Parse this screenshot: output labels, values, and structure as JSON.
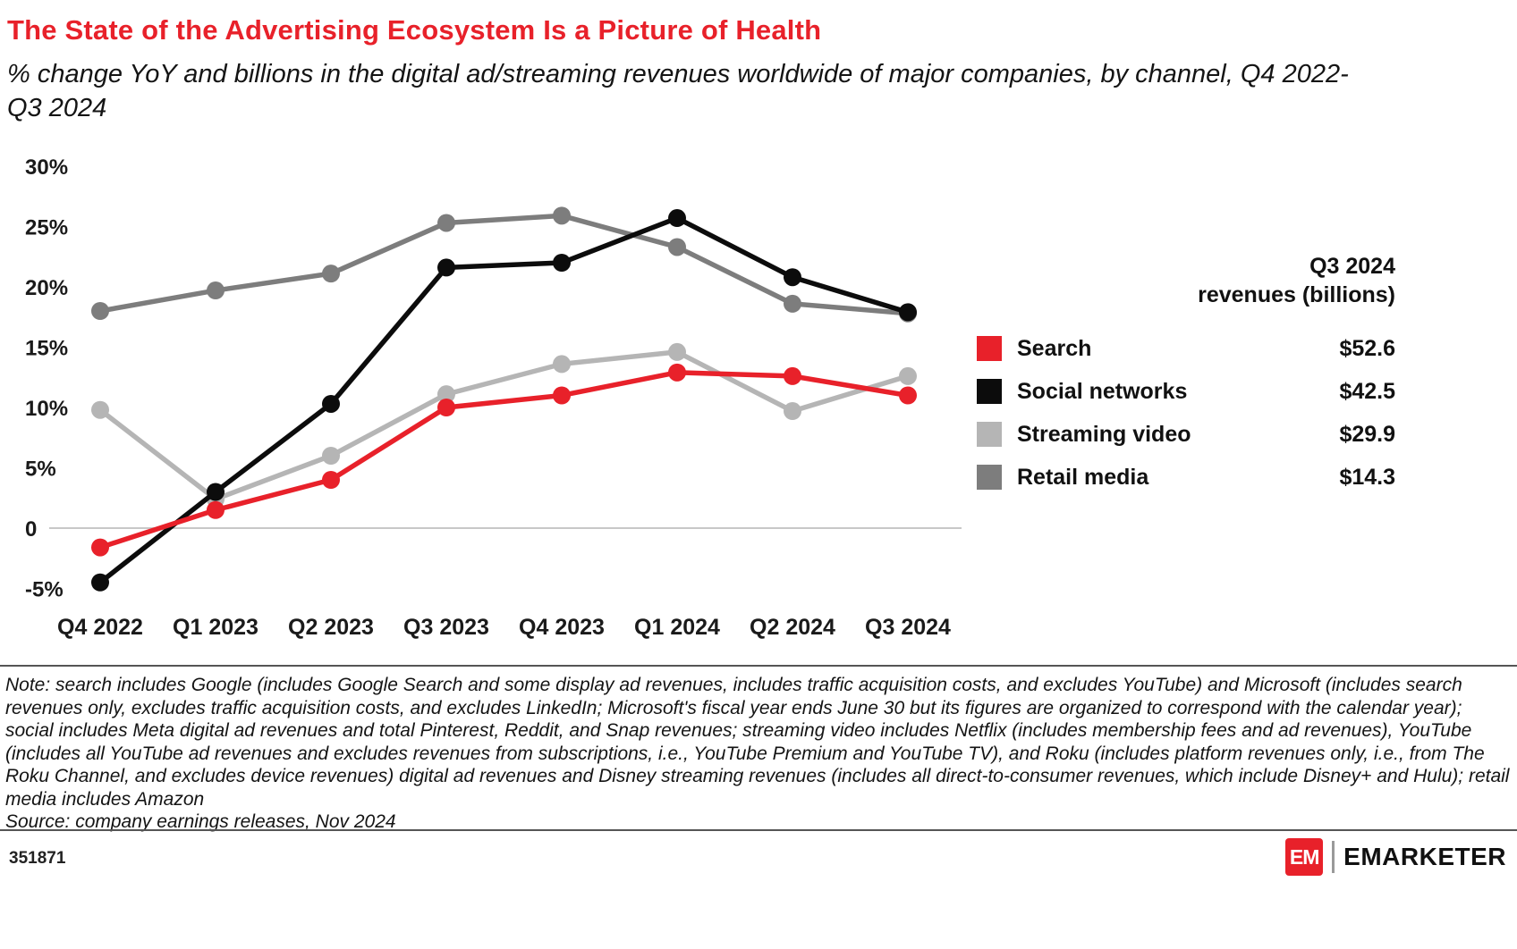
{
  "header": {
    "title": "The State of the Advertising Ecosystem Is a Picture of Health",
    "subtitle": "% change YoY and billions in the digital ad/streaming revenues worldwide of major companies, by channel, Q4 2022-Q3 2024"
  },
  "colors": {
    "accent_red": "#e8212a",
    "social_black": "#0c0c0c",
    "streaming_gray": "#b5b5b5",
    "retail_gray": "#7d7d7d",
    "zero_line": "#c8c8c8"
  },
  "chart_data": {
    "type": "line",
    "title": "The State of the Advertising Ecosystem Is a Picture of Health",
    "subtitle": "% change YoY and billions in the digital ad/streaming revenues worldwide of major companies, by channel, Q4 2022-Q3 2024",
    "categories": [
      "Q4 2022",
      "Q1 2023",
      "Q2 2023",
      "Q3 2023",
      "Q4 2023",
      "Q1 2024",
      "Q2 2024",
      "Q3 2024"
    ],
    "series": [
      {
        "name": "Search",
        "color": "#e8212a",
        "revenue": "$52.6",
        "values": [
          -1.6,
          1.5,
          4.0,
          10.0,
          11.0,
          12.9,
          12.6,
          11.0
        ]
      },
      {
        "name": "Social networks",
        "color": "#0c0c0c",
        "revenue": "$42.5",
        "values": [
          -4.5,
          3.0,
          10.3,
          21.6,
          22.0,
          25.7,
          20.8,
          17.9
        ]
      },
      {
        "name": "Streaming video",
        "color": "#b5b5b5",
        "revenue": "$29.9",
        "values": [
          9.8,
          2.4,
          6.0,
          11.1,
          13.6,
          14.6,
          9.7,
          12.6
        ]
      },
      {
        "name": "Retail media",
        "color": "#7d7d7d",
        "revenue": "$14.3",
        "values": [
          18.0,
          19.7,
          21.1,
          25.3,
          25.9,
          23.3,
          18.6,
          17.8
        ]
      }
    ],
    "xlabel": "",
    "ylabel": "% change YoY",
    "ylim": [
      -5,
      30
    ],
    "yticks": [
      30,
      25,
      20,
      15,
      10,
      5,
      0,
      -5
    ],
    "ytick_labels": [
      "30%",
      "25%",
      "20%",
      "15%",
      "10%",
      "5%",
      "0",
      "-5%"
    ],
    "grid": "zero line only",
    "legend_position": "right",
    "legend_header": "Q3 2024 revenues (billions)"
  },
  "legend": {
    "header_line1": "Q3 2024",
    "header_line2": "revenues (billions)"
  },
  "note": {
    "text": "Note: search includes Google (includes Google Search and some display ad revenues, includes traffic acquisition costs, and excludes YouTube) and Microsoft (includes search revenues only, excludes traffic acquisition costs, and excludes LinkedIn; Microsoft's fiscal year ends June 30 but its figures are organized to correspond with the calendar year); social includes Meta digital ad revenues and total Pinterest, Reddit, and Snap revenues; streaming video includes Netflix (includes membership fees and ad revenues), YouTube (includes all YouTube ad revenues and excludes revenues from subscriptions, i.e., YouTube Premium and YouTube TV), and Roku (includes platform revenues only, i.e., from The Roku Channel, and excludes device revenues) digital ad revenues and Disney streaming revenues (includes all direct-to-consumer revenues, which include Disney+ and Hulu); retail media includes Amazon",
    "source": "Source: company earnings releases, Nov 2024"
  },
  "footer": {
    "chart_id": "351871",
    "logo_monogram": "EM",
    "logo_text": "EMARKETER"
  }
}
